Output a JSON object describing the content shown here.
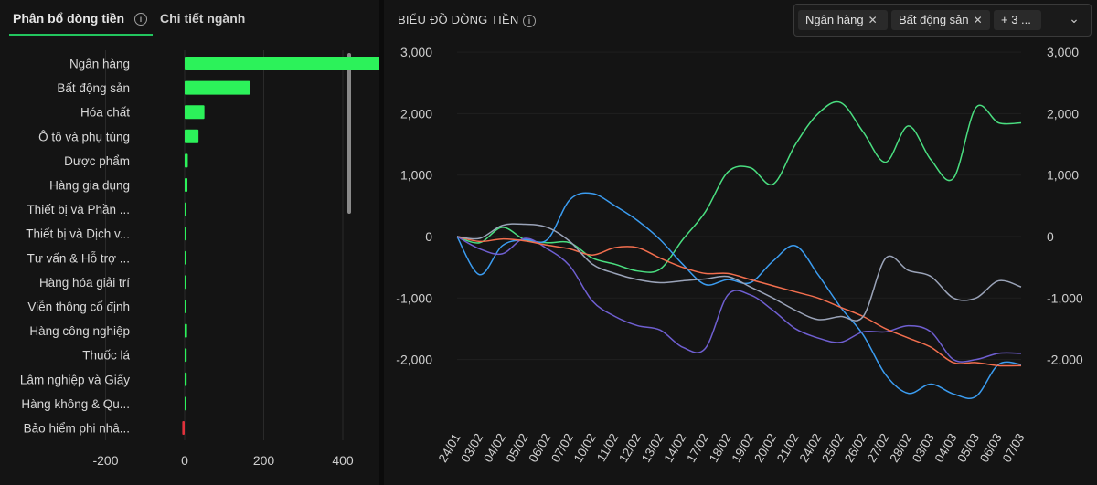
{
  "tabs": [
    {
      "label": "Phân bổ dòng tiền"
    },
    {
      "label": "Chi tiết ngành"
    }
  ],
  "right_title": "BIỂU ĐỒ DÒNG TIỀN",
  "filter": {
    "chips": [
      {
        "label": "Ngân hàng"
      },
      {
        "label": "Bất động sản"
      },
      {
        "label": "+ 3 ..."
      }
    ]
  },
  "colors": {
    "positive": "#2cf25a",
    "negative": "#e0313b",
    "green": "#4ade80",
    "blue": "#3b9cf0",
    "purple": "#6f5fd1",
    "orange": "#f26e4e",
    "gray": "#9aa3b8"
  },
  "chart_data": [
    {
      "type": "bar",
      "orientation": "horizontal",
      "categories": [
        "Ngân hàng",
        "Bất động sản",
        "Hóa chất",
        "Ô tô và phụ tùng",
        "Dược phẩm",
        "Hàng gia dụng",
        "Thiết bị và Phần ...",
        "Thiết bị và Dịch v...",
        "Tư vấn & Hỗ trợ ...",
        "Hàng hóa giải trí",
        "Viễn thông cố định",
        "Hàng công nghiệp",
        "Thuốc lá",
        "Lâm nghiệp và Giấy",
        "Hàng không & Qu...",
        "Bảo hiểm phi nhâ..."
      ],
      "values": [
        570,
        165,
        50,
        35,
        8,
        7,
        1,
        1,
        1,
        1,
        1,
        6,
        5,
        5,
        4,
        -6
      ],
      "xlim": [
        -200,
        800
      ],
      "xticks": [
        -200,
        0,
        200,
        400,
        600,
        800
      ],
      "grid": true
    },
    {
      "type": "line",
      "x": [
        "24/01",
        "03/02",
        "04/02",
        "05/02",
        "06/02",
        "07/02",
        "10/02",
        "11/02",
        "12/02",
        "13/02",
        "14/02",
        "17/02",
        "18/02",
        "19/02",
        "20/02",
        "21/02",
        "24/02",
        "25/02",
        "26/02",
        "27/02",
        "28/02",
        "03/03",
        "04/03",
        "05/03",
        "06/03",
        "07/03"
      ],
      "ylim": [
        -2000,
        3000
      ],
      "yticks": [
        3000,
        2000,
        1000,
        0,
        -1000,
        -2000
      ],
      "secondary_yticks": [
        3000,
        2000,
        1000,
        0,
        -1000,
        -2000
      ],
      "series": [
        {
          "color": "green",
          "values": [
            0,
            -100,
            150,
            -50,
            -100,
            -100,
            -350,
            -450,
            -560,
            -530,
            -50,
            400,
            1050,
            1120,
            850,
            1500,
            2000,
            2180,
            1700,
            1210,
            1800,
            1250,
            950,
            2100,
            1850,
            1850
          ]
        },
        {
          "color": "blue",
          "values": [
            0,
            -620,
            -150,
            -50,
            -50,
            600,
            700,
            500,
            260,
            -50,
            -450,
            -780,
            -700,
            -750,
            -400,
            -150,
            -620,
            -1150,
            -1600,
            -2250,
            -2550,
            -2400,
            -2560,
            -2600,
            -2080,
            -2080
          ]
        },
        {
          "color": "purple",
          "values": [
            0,
            -200,
            -280,
            -30,
            -200,
            -480,
            -1050,
            -1300,
            -1450,
            -1520,
            -1800,
            -1820,
            -950,
            -950,
            -1200,
            -1500,
            -1650,
            -1720,
            -1550,
            -1550,
            -1450,
            -1550,
            -2000,
            -2000,
            -1900,
            -1900
          ]
        },
        {
          "color": "orange",
          "values": [
            0,
            -80,
            -40,
            -70,
            -140,
            -200,
            -300,
            -180,
            -180,
            -350,
            -500,
            -600,
            -600,
            -700,
            -800,
            -900,
            -1000,
            -1150,
            -1300,
            -1500,
            -1650,
            -1800,
            -2050,
            -2050,
            -2100,
            -2100
          ]
        },
        {
          "color": "gray",
          "values": [
            0,
            -30,
            180,
            200,
            150,
            -80,
            -450,
            -600,
            -700,
            -750,
            -720,
            -690,
            -650,
            -820,
            -1000,
            -1200,
            -1350,
            -1300,
            -1300,
            -350,
            -550,
            -650,
            -1000,
            -1000,
            -720,
            -820
          ]
        }
      ],
      "grid": true
    }
  ]
}
